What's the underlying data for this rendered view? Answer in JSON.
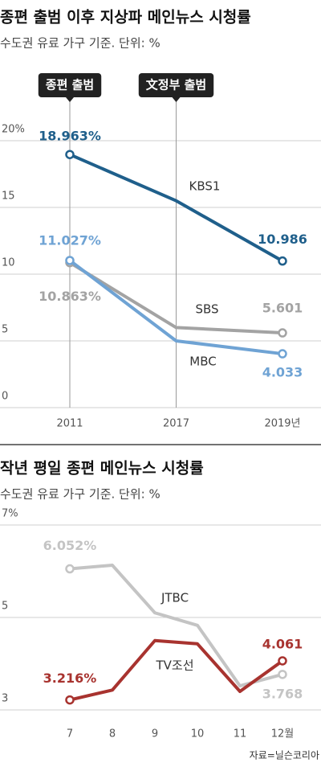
{
  "chart_data": [
    {
      "type": "line",
      "title": "종편 출범 이후 지상파 메인뉴스 시청률",
      "subtitle": "수도권 유료 가구 기준. 단위: %",
      "categories": [
        "2011",
        "2017",
        "2019년"
      ],
      "series": [
        {
          "name": "KBS1",
          "color": "#1f5f8b",
          "values": [
            18.963,
            15.5,
            10.986
          ],
          "value_labels": [
            "18.963%",
            null,
            "10.986"
          ]
        },
        {
          "name": "SBS",
          "color": "#a3a3a3",
          "values": [
            10.863,
            6.0,
            5.601
          ],
          "value_labels": [
            "10.863%",
            null,
            "5.601"
          ]
        },
        {
          "name": "MBC",
          "color": "#6fa3d4",
          "values": [
            11.027,
            5.0,
            4.033
          ],
          "value_labels": [
            "11.027%",
            null,
            "4.033"
          ]
        }
      ],
      "annotations": [
        {
          "label": "종편 출범",
          "at": "2011"
        },
        {
          "label": "文정부 출범",
          "at": "2017"
        }
      ],
      "ylim": [
        0,
        20
      ],
      "yticks": [
        0,
        5,
        10,
        15,
        {
          "value": 20,
          "label": "20%"
        }
      ],
      "grid": true
    },
    {
      "type": "line",
      "title": "작년 평일 종편 메인뉴스 시청률",
      "subtitle": "수도권 유료 가구 기준. 단위: %",
      "categories": [
        "7",
        "8",
        "9",
        "10",
        "11",
        "12월"
      ],
      "series": [
        {
          "name": "JTBC",
          "color": "#c4c4c4",
          "values": [
            6.052,
            6.13,
            5.1,
            4.83,
            3.52,
            3.768
          ],
          "value_labels": [
            "6.052%",
            null,
            null,
            null,
            null,
            "3.768"
          ]
        },
        {
          "name": "TV조선",
          "color": "#a8332f",
          "values": [
            3.216,
            3.43,
            4.5,
            4.43,
            3.4,
            4.061
          ],
          "value_labels": [
            "3.216%",
            null,
            null,
            null,
            null,
            "4.061"
          ]
        }
      ],
      "ylim": [
        3,
        7
      ],
      "yticks": [
        3,
        5,
        {
          "value": 7,
          "label": "7%"
        }
      ],
      "grid": true,
      "source": "자료=닐슨코리아"
    }
  ]
}
